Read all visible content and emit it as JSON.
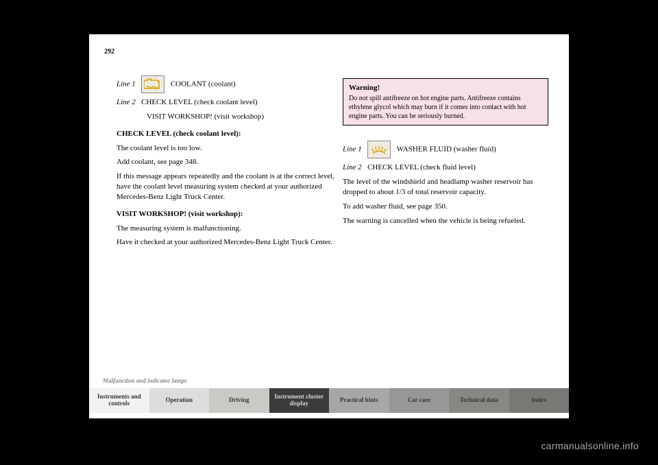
{
  "page_number": "292",
  "left": {
    "head1_label": "Line 1",
    "head1_text": "COOLANT (coolant)",
    "head2_label": "Line 2",
    "head2_texts": [
      "CHECK LEVEL (check coolant level)",
      "VISIT WORKSHOP! (visit workshop)"
    ],
    "check_level_head": "CHECK LEVEL (check coolant level):",
    "p1": "The coolant level is too low.",
    "p2": "Add coolant, see page 348.",
    "p3": "If this message appears repeatedly and the coolant is at the correct level, have the coolant level measuring system checked at your authorized Mercedes-Benz Light Truck Center.",
    "visit_head": "VISIT WORKSHOP! (visit workshop):",
    "p4": "The measuring system is malfunctioning.",
    "p5": "Have it checked at your authorized Mercedes-Benz Light Truck Center."
  },
  "right": {
    "warning_head": "Warning!",
    "warning_body": "Do not spill antifreeze on hot engine parts. Antifreeze contains ethylene glycol which may burn if it comes into contact with hot engine parts. You can be seriously burned.",
    "head1_label": "Line 1",
    "head1_text": "WASHER FLUID (washer fluid)",
    "head2_label": "Line 2",
    "head2_text": "CHECK LEVEL (check fluid level)",
    "p1": "The level of the windshield and headlamp washer reservoir has dropped to about 1/3 of total reservoir capacity.",
    "p2": "To add washer fluid, see page 350.",
    "p3": "The warning is cancelled when the vehicle is being refueled."
  },
  "footer_label": "Malfunction and indicator lamps",
  "nav": {
    "items": [
      {
        "label": "Instruments and controls",
        "bg": "#f2f2f0",
        "fg": "#333333"
      },
      {
        "label": "Operation",
        "bg": "#dedddb",
        "fg": "#333333"
      },
      {
        "label": "Driving",
        "bg": "#c9c9c5",
        "fg": "#333333"
      },
      {
        "label": "Instrument cluster display",
        "bg": "#3b3b3b",
        "fg": "#d8d6d0"
      },
      {
        "label": "Practical hints",
        "bg": "#a7a8a5",
        "fg": "#333333"
      },
      {
        "label": "Car care",
        "bg": "#979895",
        "fg": "#333333"
      },
      {
        "label": "Technical data",
        "bg": "#878884",
        "fg": "#333333"
      },
      {
        "label": "Index",
        "bg": "#787975",
        "fg": "#333333"
      }
    ]
  },
  "watermark": "carmanualsonline.info",
  "colors": {
    "icon_bg": "#f0ebe0",
    "icon_stroke": "#d9a300",
    "warning_bg": "#f7e0e8"
  }
}
